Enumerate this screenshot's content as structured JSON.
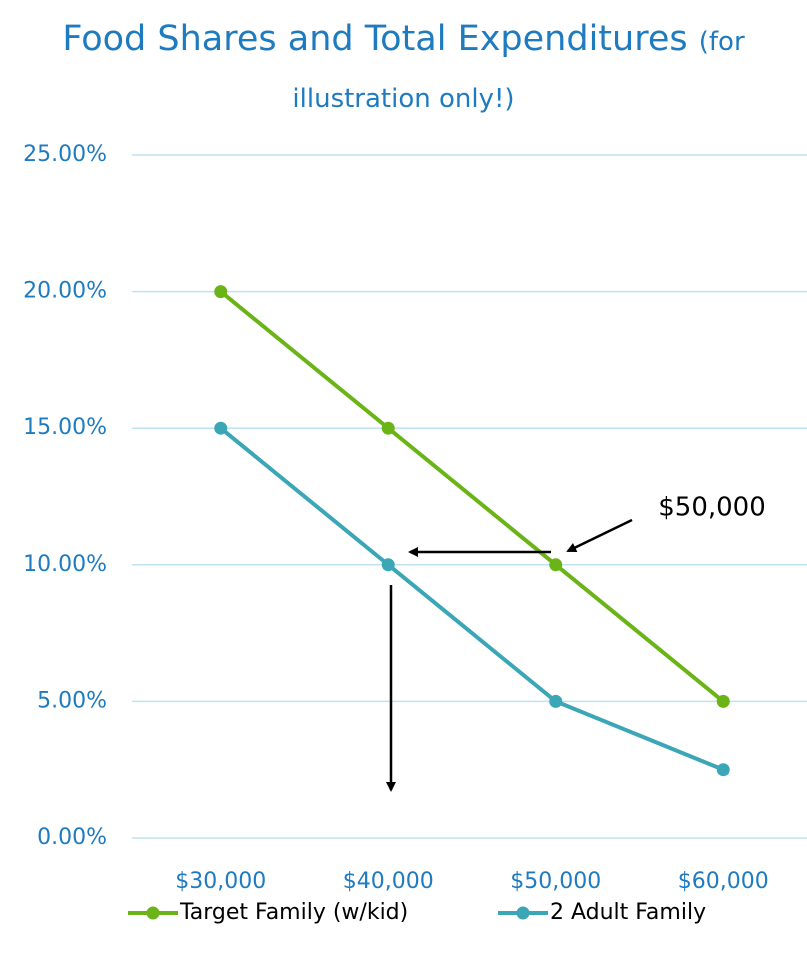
{
  "chart_data": {
    "type": "line",
    "title": "Food Shares and Total Expenditures",
    "subtitle": "(for illustration only!)",
    "categories": [
      "$30,000",
      "$40,000",
      "$50,000",
      "$60,000"
    ],
    "series": [
      {
        "name": "Target Family (w/kid)",
        "color": "#6ab417",
        "values": [
          20,
          15,
          10,
          5
        ]
      },
      {
        "name": "2 Adult Family",
        "color": "#3aa6b6",
        "values": [
          15,
          10,
          5,
          2.5
        ]
      }
    ],
    "ylim": [
      0,
      25
    ],
    "yticks": [
      {
        "value": 0,
        "label": "0.00%"
      },
      {
        "value": 5,
        "label": "5.00%"
      },
      {
        "value": 10,
        "label": "10.00%"
      },
      {
        "value": 15,
        "label": "15.00%"
      },
      {
        "value": 20,
        "label": "20.00%"
      },
      {
        "value": 25,
        "label": "25.00%"
      }
    ],
    "grid": true,
    "legend": "bottom",
    "annotation": "$50,000"
  }
}
